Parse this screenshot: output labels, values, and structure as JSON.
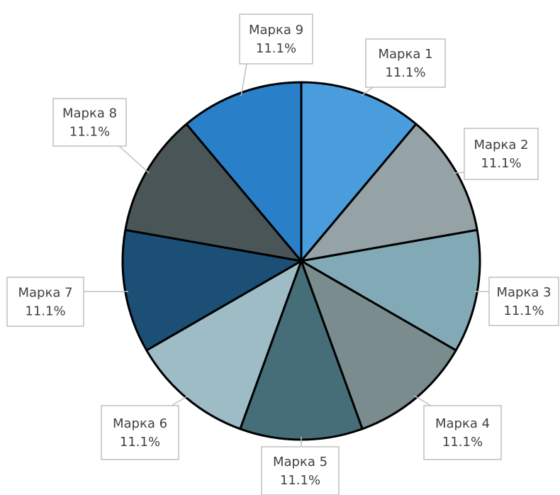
{
  "chart_data": {
    "type": "pie",
    "categories": [
      "Марка 1",
      "Марка 2",
      "Марка 3",
      "Марка 4",
      "Марка 5",
      "Марка 6",
      "Марка 7",
      "Марка 8",
      "Марка 9"
    ],
    "values": [
      11.1,
      11.1,
      11.1,
      11.1,
      11.1,
      11.1,
      11.1,
      11.1,
      11.1
    ],
    "value_labels": [
      "11.1%",
      "11.1%",
      "11.1%",
      "11.1%",
      "11.1%",
      "11.1%",
      "11.1%",
      "11.1%",
      "11.1%"
    ],
    "colors": [
      "#4a9ddc",
      "#95a3a6",
      "#82aab6",
      "#7a8c8e",
      "#466e78",
      "#9dbcc6",
      "#1b4f75",
      "#4a5558",
      "#2a80c8"
    ]
  }
}
